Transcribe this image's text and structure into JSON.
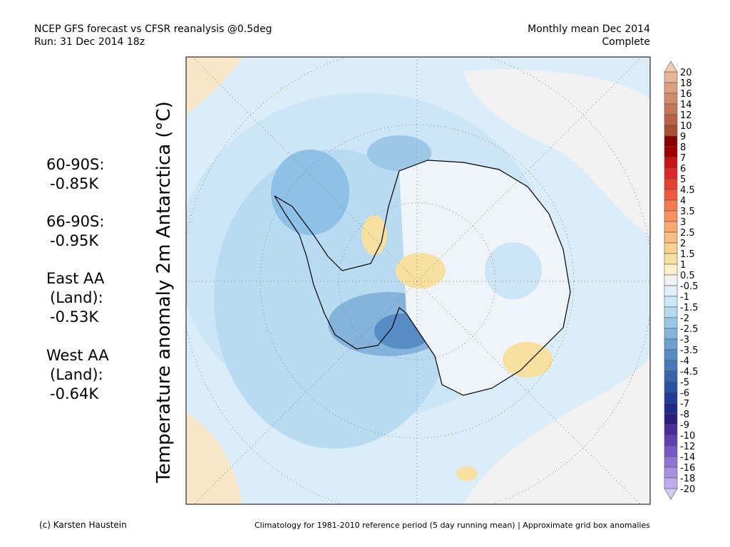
{
  "header": {
    "left": [
      "NCEP GFS forecast vs CFSR reanalysis @0.5deg",
      "Run: 31 Dec 2014 18z"
    ],
    "right": [
      "Monthly mean Dec 2014",
      "Complete"
    ]
  },
  "stats": [
    [
      "60-90S:",
      "-0.85K"
    ],
    [
      "66-90S:",
      "-0.95K"
    ],
    [
      "East AA",
      "(Land):",
      "-0.53K"
    ],
    [
      "West AA",
      "(Land):",
      "-0.64K"
    ]
  ],
  "map": {
    "title": "Temperature anomaly 2m Antarctica (°C)"
  },
  "colorbar": {
    "ticks": [
      20,
      18,
      16,
      14,
      12,
      10,
      9,
      8,
      7,
      6,
      5,
      4.5,
      4,
      3.5,
      3,
      2.5,
      2,
      1.5,
      1,
      0.5,
      -0.5,
      -1,
      -1.5,
      -2,
      -2.5,
      -3,
      -3.5,
      -4,
      -4.5,
      -5,
      -6,
      -7,
      -8,
      -9,
      -10,
      -12,
      -14,
      -16,
      -18,
      -20
    ],
    "colors": [
      "#f5c8b0",
      "#e8b49a",
      "#dca080",
      "#d08c6c",
      "#c47858",
      "#b86444",
      "#a85030",
      "#8b0000",
      "#a00000",
      "#c81414",
      "#dc2828",
      "#e84030",
      "#f05a3c",
      "#f47850",
      "#f89060",
      "#f8a870",
      "#f8c080",
      "#f8d090",
      "#f8e0a0",
      "#fcf0c8",
      "#f2f2f2",
      "#e0f0fc",
      "#cce8f8",
      "#b4daf0",
      "#9cc8e8",
      "#84b4dc",
      "#6ca0d0",
      "#588cc4",
      "#4878b8",
      "#3864ac",
      "#2850a0",
      "#203c94",
      "#202888",
      "#2c1c80",
      "#4a2c98",
      "#6040b0",
      "#7858c4",
      "#9074d4",
      "#a890e0",
      "#c0acec",
      "#d4c8f4"
    ]
  },
  "footer": {
    "left": "(c) Karsten Haustein",
    "right": "Climatology for 1981-2010 reference period (5 day running mean) | Approximate grid box anomalies"
  }
}
